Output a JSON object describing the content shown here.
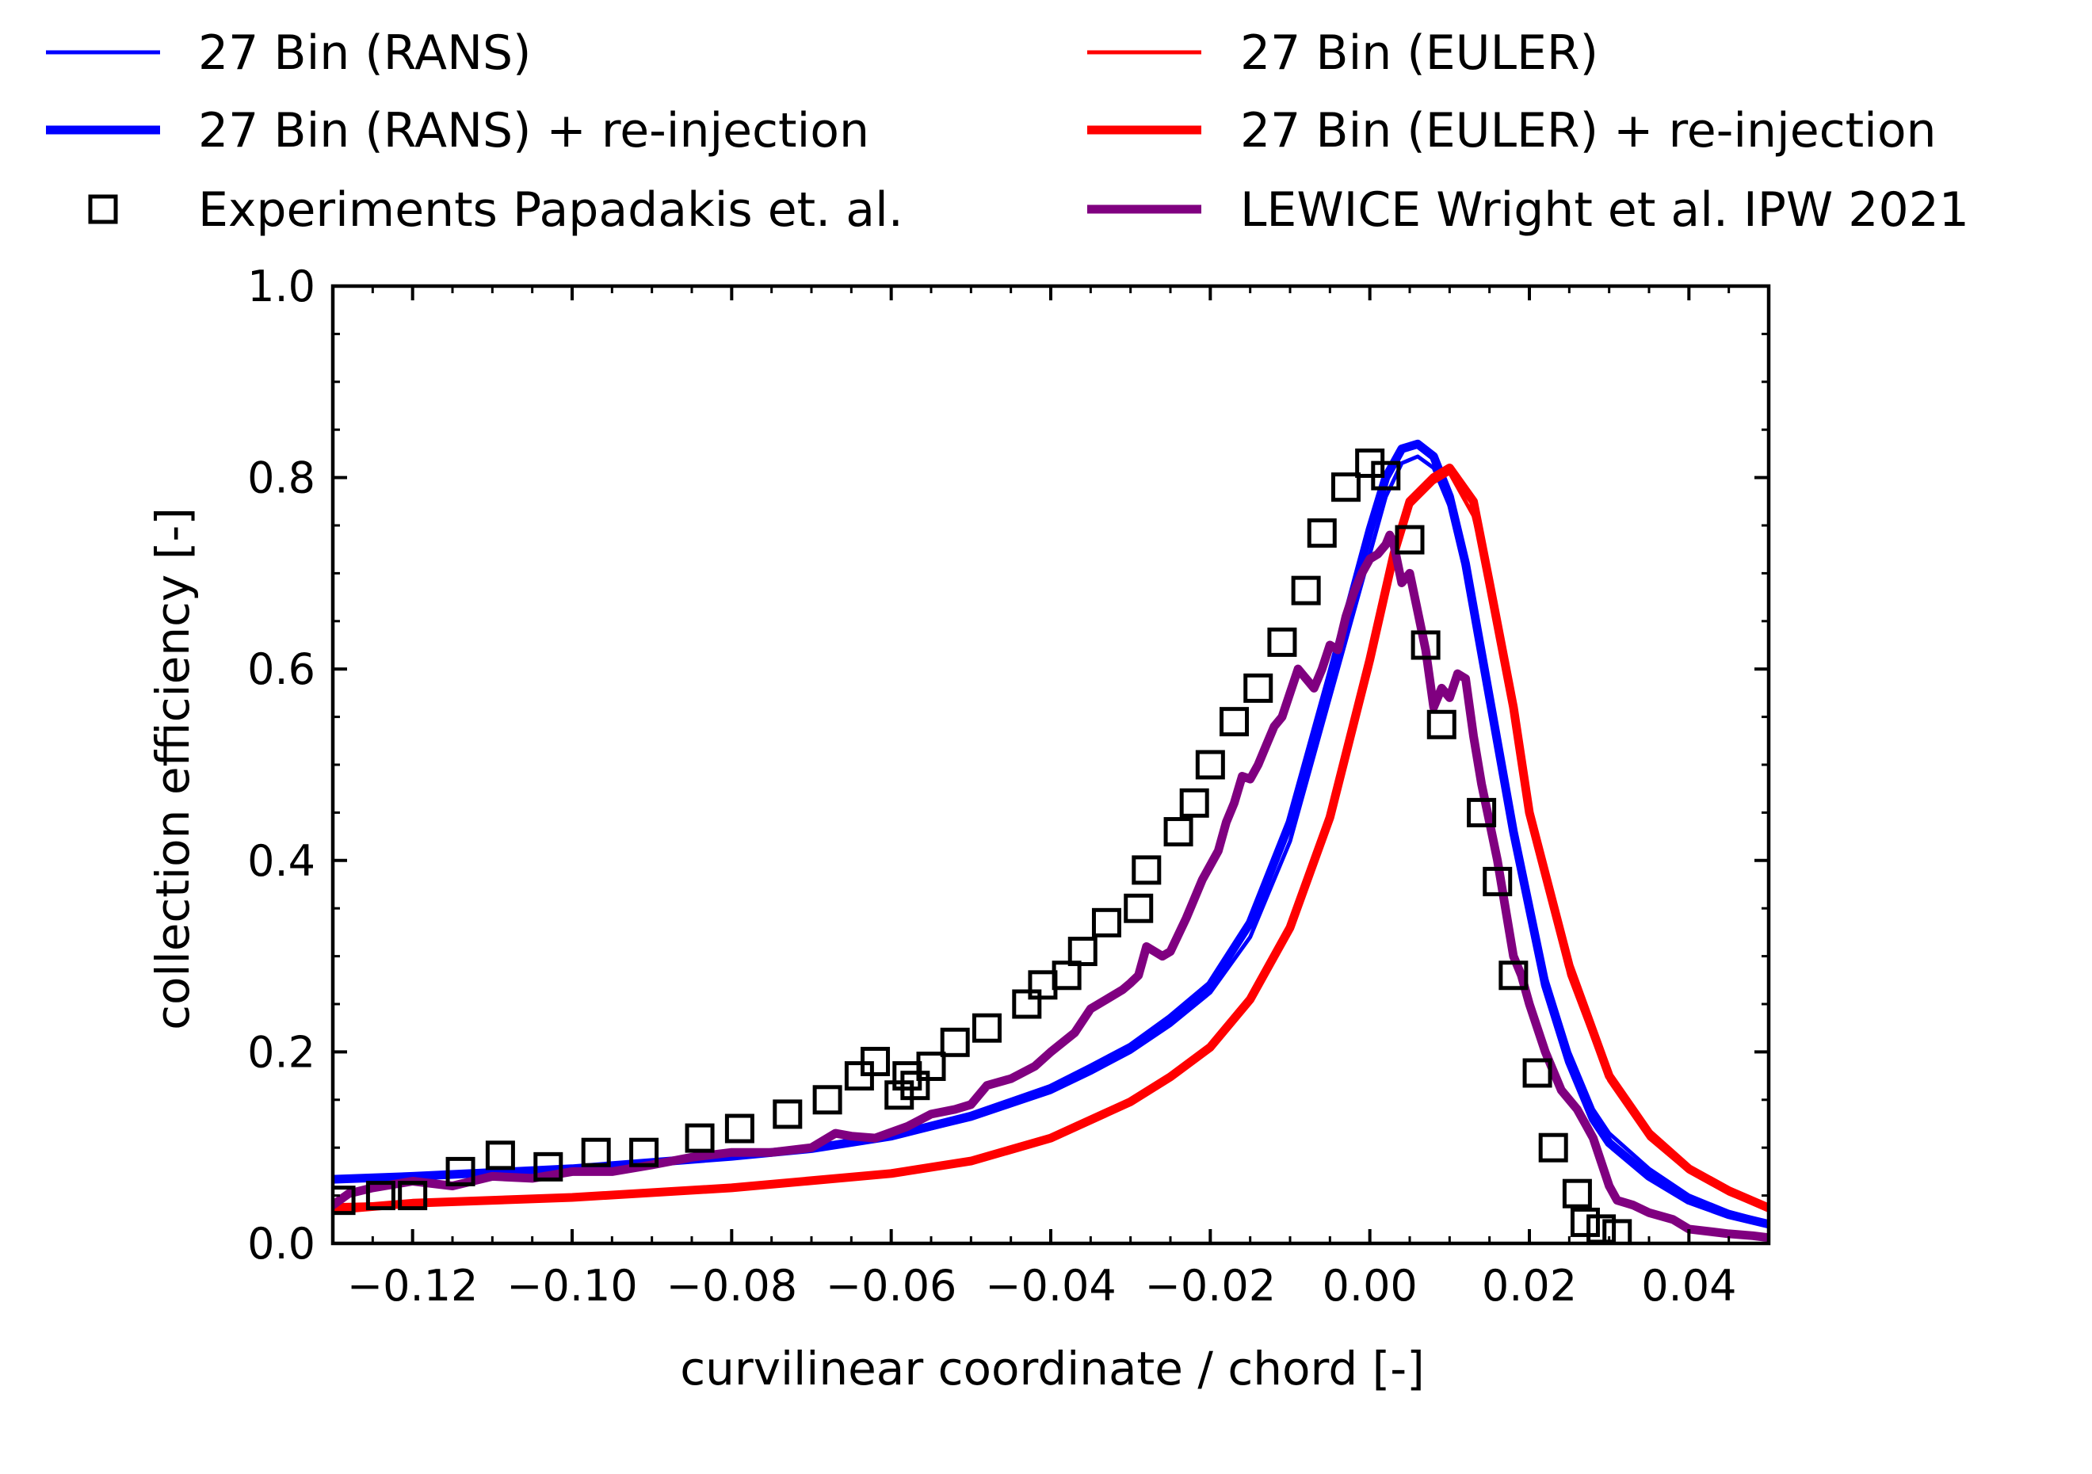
{
  "chart_data": {
    "type": "line",
    "xlabel": "curvilinear coordinate / chord [-]",
    "ylabel": "collection efficiency [-]",
    "xlim": [
      -0.13,
      0.05
    ],
    "ylim": [
      0.0,
      1.0
    ],
    "x_ticks": [
      -0.12,
      -0.1,
      -0.08,
      -0.06,
      -0.04,
      -0.02,
      0.0,
      0.02,
      0.04
    ],
    "x_tick_labels": [
      "−0.12",
      "−0.10",
      "−0.08",
      "−0.06",
      "−0.04",
      "−0.02",
      "0.00",
      "0.02",
      "0.04"
    ],
    "y_ticks": [
      0.0,
      0.2,
      0.4,
      0.6,
      0.8,
      1.0
    ],
    "y_tick_labels": [
      "0.0",
      "0.2",
      "0.4",
      "0.6",
      "0.8",
      "1.0"
    ],
    "grid": false,
    "legend_position": "top",
    "series": [
      {
        "name": "27 Bin (RANS)",
        "color": "#0000ff",
        "style": "thin",
        "x": [
          -0.13,
          -0.12,
          -0.1,
          -0.08,
          -0.07,
          -0.06,
          -0.05,
          -0.04,
          -0.035,
          -0.03,
          -0.025,
          -0.02,
          -0.015,
          -0.01,
          -0.005,
          0.0,
          0.002,
          0.004,
          0.006,
          0.008,
          0.01,
          0.012,
          0.015,
          0.018,
          0.02,
          0.022,
          0.025,
          0.028,
          0.03,
          0.035,
          0.04,
          0.045,
          0.05
        ],
        "y": [
          0.068,
          0.07,
          0.077,
          0.09,
          0.098,
          0.11,
          0.13,
          0.158,
          0.178,
          0.2,
          0.228,
          0.262,
          0.32,
          0.42,
          0.57,
          0.72,
          0.78,
          0.815,
          0.822,
          0.81,
          0.77,
          0.7,
          0.56,
          0.43,
          0.35,
          0.28,
          0.2,
          0.14,
          0.115,
          0.078,
          0.05,
          0.033,
          0.022
        ]
      },
      {
        "name": "27 Bin (RANS) + re-injection",
        "color": "#0000ff",
        "style": "thick",
        "x": [
          -0.13,
          -0.12,
          -0.1,
          -0.08,
          -0.07,
          -0.06,
          -0.05,
          -0.04,
          -0.035,
          -0.03,
          -0.025,
          -0.02,
          -0.015,
          -0.01,
          -0.005,
          0.0,
          0.002,
          0.004,
          0.006,
          0.008,
          0.01,
          0.012,
          0.015,
          0.018,
          0.02,
          0.022,
          0.025,
          0.028,
          0.03,
          0.035,
          0.04,
          0.045,
          0.05
        ],
        "y": [
          0.067,
          0.07,
          0.078,
          0.091,
          0.099,
          0.112,
          0.133,
          0.162,
          0.183,
          0.205,
          0.235,
          0.27,
          0.335,
          0.44,
          0.59,
          0.745,
          0.8,
          0.83,
          0.835,
          0.822,
          0.78,
          0.71,
          0.57,
          0.43,
          0.35,
          0.27,
          0.19,
          0.13,
          0.105,
          0.07,
          0.045,
          0.03,
          0.02
        ]
      },
      {
        "name": "27 Bin (EULER)",
        "color": "#ff0000",
        "style": "thin",
        "x": [
          -0.13,
          -0.12,
          -0.1,
          -0.08,
          -0.06,
          -0.05,
          -0.04,
          -0.03,
          -0.025,
          -0.02,
          -0.015,
          -0.01,
          -0.005,
          0.0,
          0.003,
          0.005,
          0.008,
          0.01,
          0.013,
          0.015,
          0.018,
          0.02,
          0.025,
          0.03,
          0.035,
          0.04,
          0.045,
          0.05
        ],
        "y": [
          0.04,
          0.042,
          0.047,
          0.057,
          0.072,
          0.085,
          0.108,
          0.148,
          0.175,
          0.205,
          0.255,
          0.33,
          0.44,
          0.6,
          0.72,
          0.77,
          0.795,
          0.805,
          0.76,
          0.69,
          0.56,
          0.45,
          0.28,
          0.17,
          0.11,
          0.075,
          0.052,
          0.035
        ]
      },
      {
        "name": "27 Bin (EULER) + re-injection",
        "color": "#ff0000",
        "style": "thick",
        "x": [
          -0.13,
          -0.12,
          -0.1,
          -0.08,
          -0.06,
          -0.05,
          -0.04,
          -0.03,
          -0.025,
          -0.02,
          -0.015,
          -0.01,
          -0.005,
          0.0,
          0.003,
          0.005,
          0.008,
          0.01,
          0.013,
          0.015,
          0.018,
          0.02,
          0.025,
          0.03,
          0.035,
          0.04,
          0.045,
          0.05
        ],
        "y": [
          0.035,
          0.042,
          0.048,
          0.058,
          0.073,
          0.086,
          0.11,
          0.148,
          0.174,
          0.205,
          0.255,
          0.33,
          0.445,
          0.61,
          0.72,
          0.775,
          0.8,
          0.81,
          0.775,
          0.69,
          0.56,
          0.45,
          0.29,
          0.175,
          0.115,
          0.078,
          0.055,
          0.037
        ]
      },
      {
        "name": "Experiments Papadakis et. al.",
        "color": "#000000",
        "style": "markers",
        "x": [
          -0.129,
          -0.124,
          -0.12,
          -0.114,
          -0.109,
          -0.103,
          -0.097,
          -0.091,
          -0.084,
          -0.079,
          -0.073,
          -0.068,
          -0.064,
          -0.062,
          -0.059,
          -0.058,
          -0.057,
          -0.055,
          -0.052,
          -0.048,
          -0.043,
          -0.041,
          -0.038,
          -0.036,
          -0.033,
          -0.029,
          -0.028,
          -0.024,
          -0.022,
          -0.02,
          -0.017,
          -0.014,
          -0.011,
          -0.008,
          -0.006,
          -0.003,
          0.0,
          0.002,
          0.005,
          0.007,
          0.009,
          0.014,
          0.016,
          0.018,
          0.021,
          0.023,
          0.026,
          0.027,
          0.029,
          0.031
        ],
        "y": [
          0.045,
          0.05,
          0.05,
          0.075,
          0.092,
          0.08,
          0.095,
          0.095,
          0.11,
          0.12,
          0.135,
          0.15,
          0.175,
          0.19,
          0.155,
          0.175,
          0.165,
          0.185,
          0.21,
          0.225,
          0.25,
          0.27,
          0.28,
          0.305,
          0.335,
          0.35,
          0.39,
          0.43,
          0.46,
          0.5,
          0.545,
          0.58,
          0.628,
          0.682,
          0.742,
          0.79,
          0.815,
          0.802,
          0.735,
          0.625,
          0.542,
          0.45,
          0.378,
          0.28,
          0.178,
          0.1,
          0.052,
          0.022,
          0.015,
          0.01
        ]
      },
      {
        "name": "LEWICE Wright et al. IPW 2021",
        "color": "#800080",
        "style": "thick",
        "x": [
          -0.13,
          -0.128,
          -0.125,
          -0.12,
          -0.115,
          -0.11,
          -0.105,
          -0.1,
          -0.095,
          -0.09,
          -0.085,
          -0.08,
          -0.075,
          -0.07,
          -0.067,
          -0.065,
          -0.062,
          -0.058,
          -0.055,
          -0.052,
          -0.05,
          -0.048,
          -0.045,
          -0.042,
          -0.04,
          -0.037,
          -0.035,
          -0.033,
          -0.031,
          -0.03,
          -0.029,
          -0.028,
          -0.027,
          -0.026,
          -0.025,
          -0.023,
          -0.021,
          -0.019,
          -0.018,
          -0.017,
          -0.016,
          -0.015,
          -0.014,
          -0.013,
          -0.012,
          -0.011,
          -0.01,
          -0.009,
          -0.008,
          -0.007,
          -0.006,
          -0.005,
          -0.004,
          -0.003,
          -0.002,
          -0.001,
          0.0,
          0.001,
          0.002,
          0.0025,
          0.003,
          0.004,
          0.005,
          0.006,
          0.007,
          0.008,
          0.009,
          0.01,
          0.011,
          0.012,
          0.013,
          0.014,
          0.015,
          0.016,
          0.017,
          0.018,
          0.019,
          0.02,
          0.022,
          0.024,
          0.026,
          0.027,
          0.028,
          0.029,
          0.03,
          0.031,
          0.033,
          0.035,
          0.038,
          0.04,
          0.043,
          0.045,
          0.048,
          0.05
        ],
        "y": [
          0.04,
          0.052,
          0.058,
          0.065,
          0.06,
          0.07,
          0.068,
          0.075,
          0.075,
          0.082,
          0.09,
          0.095,
          0.095,
          0.1,
          0.115,
          0.112,
          0.11,
          0.122,
          0.135,
          0.14,
          0.145,
          0.165,
          0.172,
          0.185,
          0.2,
          0.22,
          0.245,
          0.255,
          0.265,
          0.272,
          0.28,
          0.31,
          0.305,
          0.3,
          0.305,
          0.34,
          0.38,
          0.41,
          0.44,
          0.46,
          0.488,
          0.485,
          0.5,
          0.52,
          0.54,
          0.55,
          0.575,
          0.6,
          0.59,
          0.58,
          0.6,
          0.625,
          0.62,
          0.655,
          0.68,
          0.7,
          0.715,
          0.72,
          0.73,
          0.74,
          0.73,
          0.69,
          0.7,
          0.66,
          0.62,
          0.56,
          0.58,
          0.57,
          0.595,
          0.59,
          0.53,
          0.48,
          0.44,
          0.4,
          0.35,
          0.3,
          0.28,
          0.25,
          0.2,
          0.16,
          0.14,
          0.125,
          0.11,
          0.085,
          0.06,
          0.045,
          0.04,
          0.032,
          0.025,
          0.015,
          0.012,
          0.01,
          0.008,
          0.006
        ]
      }
    ]
  }
}
